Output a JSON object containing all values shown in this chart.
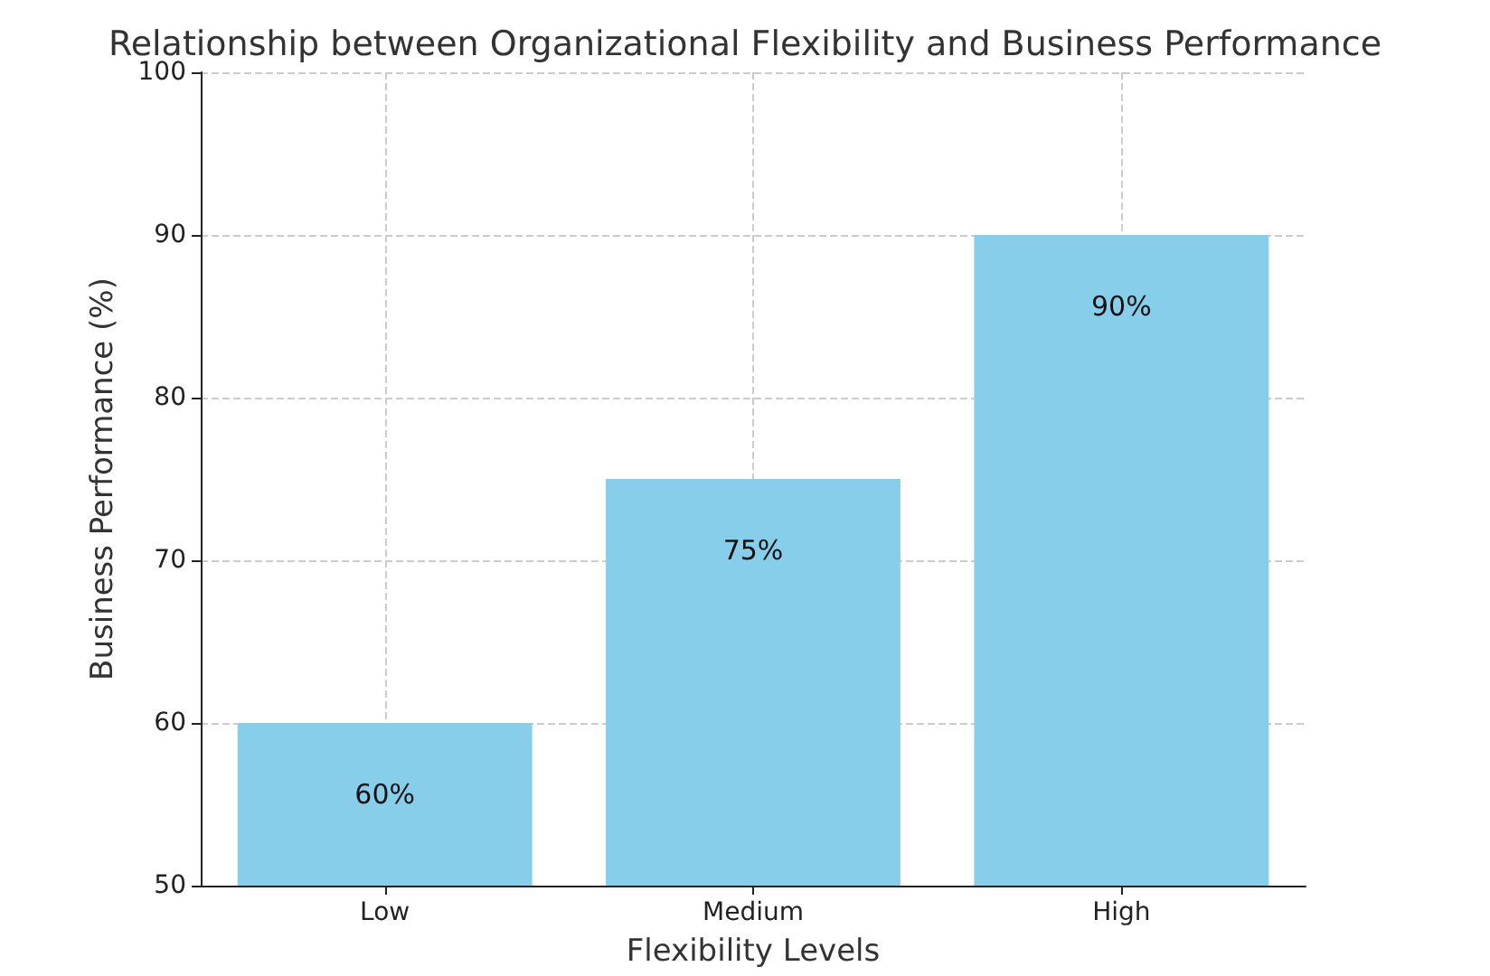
{
  "chart_data": {
    "type": "bar",
    "title": "Relationship between Organizational Flexibility and Business Performance",
    "xlabel": "Flexibility Levels",
    "ylabel": "Business Performance (%)",
    "categories": [
      "Low",
      "Medium",
      "High"
    ],
    "values": [
      60,
      75,
      90
    ],
    "value_labels": [
      "60%",
      "75%",
      "90%"
    ],
    "color": "#87ceeb",
    "ylim": [
      50,
      100
    ],
    "yticks": [
      50,
      60,
      70,
      80,
      90,
      100
    ],
    "grid": true
  }
}
